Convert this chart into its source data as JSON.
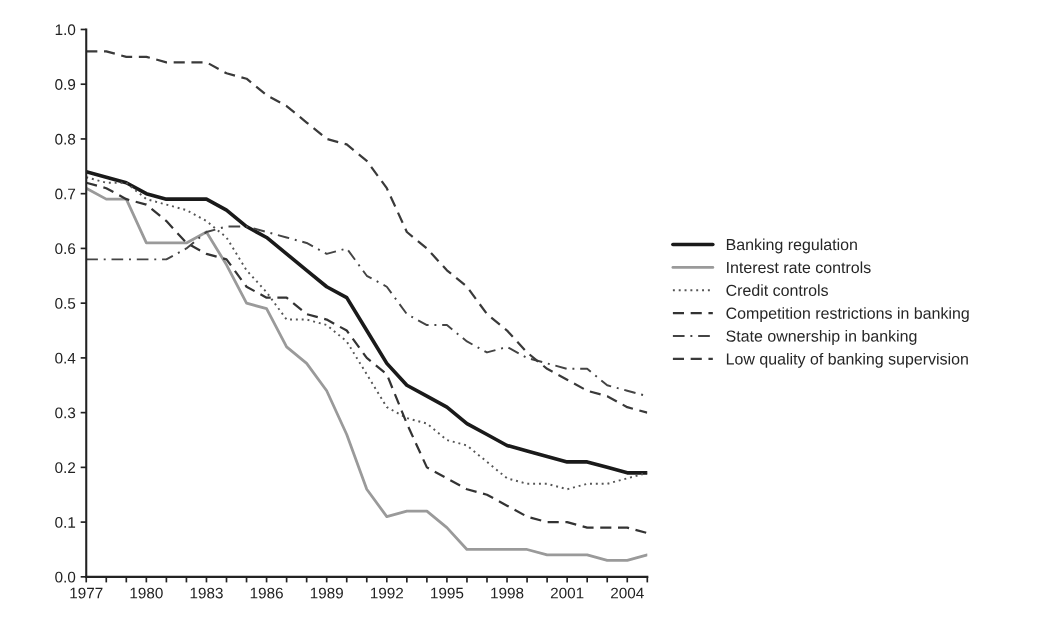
{
  "chart_data": {
    "type": "line",
    "x": [
      1977,
      1978,
      1979,
      1980,
      1981,
      1982,
      1983,
      1984,
      1985,
      1986,
      1987,
      1988,
      1989,
      1990,
      1991,
      1992,
      1993,
      1994,
      1995,
      1996,
      1997,
      1998,
      1999,
      2000,
      2001,
      2002,
      2003,
      2004,
      2005
    ],
    "series": [
      {
        "name": "Banking regulation",
        "color": "#1a1a1a",
        "line_style": "solid",
        "values": [
          0.74,
          0.73,
          0.72,
          0.7,
          0.69,
          0.69,
          0.69,
          0.67,
          0.64,
          0.62,
          0.59,
          0.56,
          0.53,
          0.51,
          0.45,
          0.39,
          0.35,
          0.33,
          0.31,
          0.28,
          0.26,
          0.24,
          0.23,
          0.22,
          0.21,
          0.21,
          0.2,
          0.19,
          0.19
        ]
      },
      {
        "name": "Interest rate controls",
        "color": "#9a9a9a",
        "line_style": "solid",
        "values": [
          0.71,
          0.69,
          0.69,
          0.61,
          0.61,
          0.61,
          0.63,
          0.57,
          0.5,
          0.49,
          0.42,
          0.39,
          0.34,
          0.26,
          0.16,
          0.11,
          0.12,
          0.12,
          0.09,
          0.05,
          0.05,
          0.05,
          0.05,
          0.04,
          0.04,
          0.04,
          0.03,
          0.03,
          0.04
        ]
      },
      {
        "name": "Credit controls",
        "color": "#555555",
        "line_style": "dotted",
        "values": [
          0.73,
          0.72,
          0.72,
          0.69,
          0.68,
          0.67,
          0.65,
          0.62,
          0.56,
          0.52,
          0.47,
          0.47,
          0.46,
          0.43,
          0.37,
          0.31,
          0.29,
          0.28,
          0.25,
          0.24,
          0.21,
          0.18,
          0.17,
          0.17,
          0.16,
          0.17,
          0.17,
          0.18,
          0.19
        ]
      },
      {
        "name": "Competition restrictions in banking",
        "color": "#333333",
        "line_style": "dashed",
        "values": [
          0.72,
          0.71,
          0.69,
          0.68,
          0.65,
          0.61,
          0.59,
          0.58,
          0.53,
          0.51,
          0.51,
          0.48,
          0.47,
          0.45,
          0.4,
          0.37,
          0.28,
          0.2,
          0.18,
          0.16,
          0.15,
          0.13,
          0.11,
          0.1,
          0.1,
          0.09,
          0.09,
          0.09,
          0.08
        ]
      },
      {
        "name": "State ownership in banking",
        "color": "#444444",
        "line_style": "dashdot",
        "values": [
          0.58,
          0.58,
          0.58,
          0.58,
          0.58,
          0.6,
          0.63,
          0.64,
          0.64,
          0.63,
          0.62,
          0.61,
          0.59,
          0.6,
          0.55,
          0.53,
          0.48,
          0.46,
          0.46,
          0.43,
          0.41,
          0.42,
          0.4,
          0.39,
          0.38,
          0.38,
          0.35,
          0.34,
          0.33
        ]
      },
      {
        "name": "Low quality of banking supervision",
        "color": "#3a3a3a",
        "line_style": "dashed",
        "values": [
          0.96,
          0.96,
          0.95,
          0.95,
          0.94,
          0.94,
          0.94,
          0.92,
          0.91,
          0.88,
          0.86,
          0.83,
          0.8,
          0.79,
          0.76,
          0.71,
          0.63,
          0.6,
          0.56,
          0.53,
          0.48,
          0.45,
          0.41,
          0.38,
          0.36,
          0.34,
          0.33,
          0.31,
          0.3
        ]
      }
    ],
    "xlim": [
      1977,
      2005
    ],
    "xticks": [
      1977,
      {
        "value": 1978,
        "label": null
      },
      {
        "value": 1979,
        "label": null
      },
      1980,
      {
        "value": 1981,
        "label": null
      },
      {
        "value": 1982,
        "label": null
      },
      1983,
      {
        "value": 1984,
        "label": null
      },
      {
        "value": 1985,
        "label": null
      },
      1986,
      {
        "value": 1987,
        "label": null
      },
      {
        "value": 1988,
        "label": null
      },
      1989,
      {
        "value": 1990,
        "label": null
      },
      {
        "value": 1991,
        "label": null
      },
      1992,
      {
        "value": 1993,
        "label": null
      },
      {
        "value": 1994,
        "label": null
      },
      1995,
      {
        "value": 1996,
        "label": null
      },
      {
        "value": 1997,
        "label": null
      },
      1998,
      {
        "value": 1999,
        "label": null
      },
      {
        "value": 2000,
        "label": null
      },
      2001,
      {
        "value": 2002,
        "label": null
      },
      {
        "value": 2003,
        "label": null
      },
      2004,
      {
        "value": 2005,
        "label": null
      }
    ],
    "ylim": [
      0,
      1
    ],
    "yticks": [
      {
        "value": 0,
        "label": "0.0"
      },
      {
        "value": 0.1,
        "label": "0.1"
      },
      {
        "value": 0.2,
        "label": "0.2"
      },
      {
        "value": 0.3,
        "label": "0.3"
      },
      {
        "value": 0.4,
        "label": "0.4"
      },
      {
        "value": 0.5,
        "label": "0.5"
      },
      {
        "value": 0.6,
        "label": "0.6"
      },
      {
        "value": 0.7,
        "label": "0.7"
      },
      {
        "value": 0.8,
        "label": "0.8"
      },
      {
        "value": 0.9,
        "label": "0.9"
      },
      {
        "value": 1.0,
        "label": "1.0"
      }
    ],
    "legend": "right"
  }
}
